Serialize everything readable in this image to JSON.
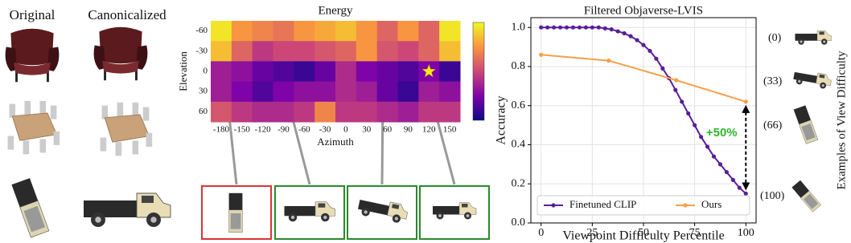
{
  "figure": {
    "left_headers": [
      "Original",
      "Canonicalized"
    ],
    "difficulty": {
      "title": "Examples of View Difficulty",
      "labels": [
        "(0)",
        "(33)",
        "(66)",
        "(100)"
      ]
    }
  },
  "chart_data": [
    {
      "type": "heatmap",
      "title": "Energy",
      "x_label": "Azimuth",
      "y_label": "Elevation",
      "x": [
        -180,
        -150,
        -120,
        -90,
        -60,
        -30,
        0,
        30,
        60,
        90,
        120,
        150
      ],
      "y": [
        -60,
        -30,
        0,
        30,
        60
      ],
      "values": [
        [
          0.95,
          0.75,
          0.7,
          0.65,
          0.75,
          0.8,
          0.85,
          0.75,
          0.6,
          0.75,
          0.6,
          0.95
        ],
        [
          0.85,
          0.6,
          0.45,
          0.5,
          0.5,
          0.55,
          0.6,
          0.75,
          0.55,
          0.5,
          0.6,
          0.85
        ],
        [
          0.35,
          0.3,
          0.2,
          0.15,
          0.1,
          0.2,
          0.4,
          0.25,
          0.2,
          0.15,
          0.25,
          0.1
        ],
        [
          0.35,
          0.25,
          0.15,
          0.25,
          0.3,
          0.3,
          0.4,
          0.35,
          0.2,
          0.1,
          0.35,
          0.3
        ],
        [
          0.55,
          0.45,
          0.4,
          0.4,
          0.45,
          0.7,
          0.45,
          0.45,
          0.4,
          0.35,
          0.45,
          0.45
        ]
      ],
      "zlim": [
        0,
        1
      ],
      "colormap": "plasma",
      "colorbar": true,
      "star": {
        "x": 120,
        "y": 0
      }
    },
    {
      "type": "line",
      "title": "Filtered Objaverse-LVIS",
      "x_label": "Viewpoint Difficulty Percentile",
      "y_label": "Accuracy",
      "series": [
        {
          "name": "Finetuned CLIP",
          "color": "#5a1e9a",
          "x": [
            0,
            3.125,
            6.25,
            9.375,
            12.5,
            15.625,
            18.75,
            21.875,
            25,
            28.125,
            31.25,
            34.375,
            37.5,
            40.625,
            43.75,
            46.875,
            50,
            53.125,
            56.25,
            59.375,
            62.5,
            65.625,
            68.75,
            71.875,
            75,
            78.125,
            81.25,
            84.375,
            87.5,
            90.625,
            93.75,
            96.875,
            100
          ],
          "values": [
            1,
            1,
            1,
            1,
            1,
            1,
            1,
            1,
            1,
            1,
            0.995,
            0.99,
            0.98,
            0.97,
            0.955,
            0.935,
            0.91,
            0.88,
            0.84,
            0.79,
            0.74,
            0.68,
            0.62,
            0.56,
            0.5,
            0.44,
            0.39,
            0.34,
            0.3,
            0.26,
            0.22,
            0.18,
            0.15
          ]
        },
        {
          "name": "Ours",
          "color": "#f5a04a",
          "x": [
            0,
            33,
            66,
            100
          ],
          "values": [
            0.86,
            0.83,
            0.73,
            0.62
          ]
        }
      ],
      "xlim": [
        -5,
        105
      ],
      "xticks": [
        0,
        25,
        50,
        75,
        100
      ],
      "ylim": [
        0,
        1.05
      ],
      "yticks": [
        {
          "value": 0,
          "label": "0.0"
        },
        {
          "value": 0.2,
          "label": "0.2"
        },
        {
          "value": 0.4,
          "label": "0.4"
        },
        {
          "value": 0.6,
          "label": "0.6"
        },
        {
          "value": 0.8,
          "label": "0.8"
        },
        {
          "value": 1,
          "label": "1.0"
        }
      ],
      "grid": true,
      "legend": "lower center",
      "annotation": {
        "text": "+50%",
        "color": "#2db52d"
      }
    }
  ]
}
